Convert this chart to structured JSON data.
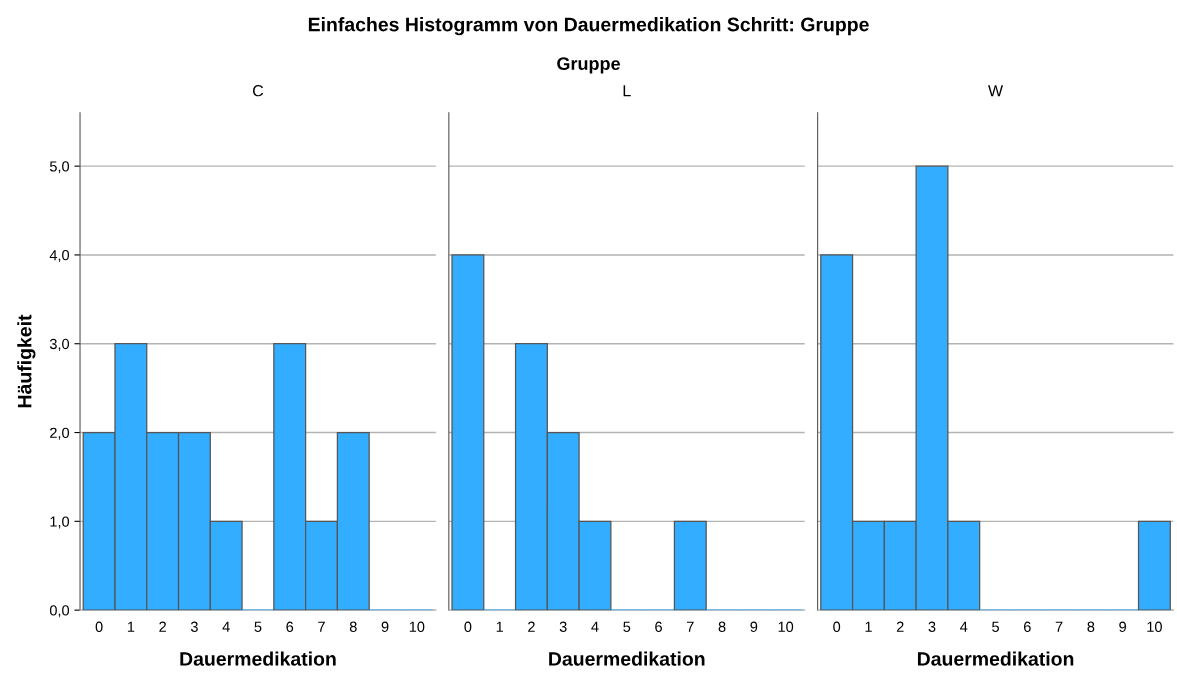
{
  "chart_data": [
    {
      "type": "histogram",
      "title": "C",
      "xlabel": "Dauermedikation",
      "ylabel": "Häufigkeit",
      "annotations": [
        "Einfaches Histogramm von Dauermedikation Schritt: Gruppe",
        "Gruppe"
      ],
      "bins": [
        -0.5,
        0.5,
        1.5,
        2.5,
        3.5,
        4.5,
        5.5,
        6.5,
        7.5,
        8.5,
        9.5,
        10.5
      ],
      "values": [
        2,
        3,
        2,
        2,
        1,
        0,
        3,
        1,
        2,
        0,
        0
      ],
      "color": "#33adff",
      "xlim": [
        -0.6,
        10.6
      ],
      "xticks": [
        0,
        1,
        2,
        3,
        4,
        5,
        6,
        7,
        8,
        9,
        10
      ],
      "ylim": [
        0,
        5.6
      ],
      "yticks": [
        {
          "value": 0,
          "label": "0,0"
        },
        {
          "value": 1,
          "label": "1,0"
        },
        {
          "value": 2,
          "label": "2,0"
        },
        {
          "value": 3,
          "label": "3,0"
        },
        {
          "value": 4,
          "label": "4,0"
        },
        {
          "value": 5,
          "label": "5,0"
        }
      ],
      "grid": "y"
    },
    {
      "type": "histogram",
      "title": "L",
      "xlabel": "Dauermedikation",
      "bins": [
        -0.5,
        0.5,
        1.5,
        2.5,
        3.5,
        4.5,
        5.5,
        6.5,
        7.5,
        8.5,
        9.5,
        10.5
      ],
      "values": [
        4,
        0,
        3,
        2,
        1,
        0,
        0,
        1,
        0,
        0,
        0
      ],
      "color": "#33adff",
      "xlim": [
        -0.6,
        10.6
      ],
      "xticks": [
        0,
        1,
        2,
        3,
        4,
        5,
        6,
        7,
        8,
        9,
        10
      ],
      "ylim": [
        0,
        5.6
      ],
      "yticks": [
        {
          "value": 0,
          "label": null
        },
        {
          "value": 1,
          "label": null
        },
        {
          "value": 2,
          "label": null
        },
        {
          "value": 3,
          "label": null
        },
        {
          "value": 4,
          "label": null
        },
        {
          "value": 5,
          "label": null
        }
      ],
      "grid": "y",
      "tick_labels": "x"
    },
    {
      "type": "histogram",
      "title": "W",
      "xlabel": "Dauermedikation",
      "bins": [
        -0.5,
        0.5,
        1.5,
        2.5,
        3.5,
        4.5,
        5.5,
        6.5,
        7.5,
        8.5,
        9.5,
        10.5
      ],
      "values": [
        4,
        1,
        1,
        5,
        1,
        0,
        0,
        0,
        0,
        0,
        1
      ],
      "color": "#33adff",
      "xlim": [
        -0.6,
        10.6
      ],
      "xticks": [
        0,
        1,
        2,
        3,
        4,
        5,
        6,
        7,
        8,
        9,
        10
      ],
      "ylim": [
        0,
        5.6
      ],
      "yticks": [
        {
          "value": 0,
          "label": null
        },
        {
          "value": 1,
          "label": null
        },
        {
          "value": 2,
          "label": null
        },
        {
          "value": 3,
          "label": null
        },
        {
          "value": 4,
          "label": null
        },
        {
          "value": 5,
          "label": null
        }
      ],
      "grid": "y",
      "tick_labels": "x"
    }
  ]
}
